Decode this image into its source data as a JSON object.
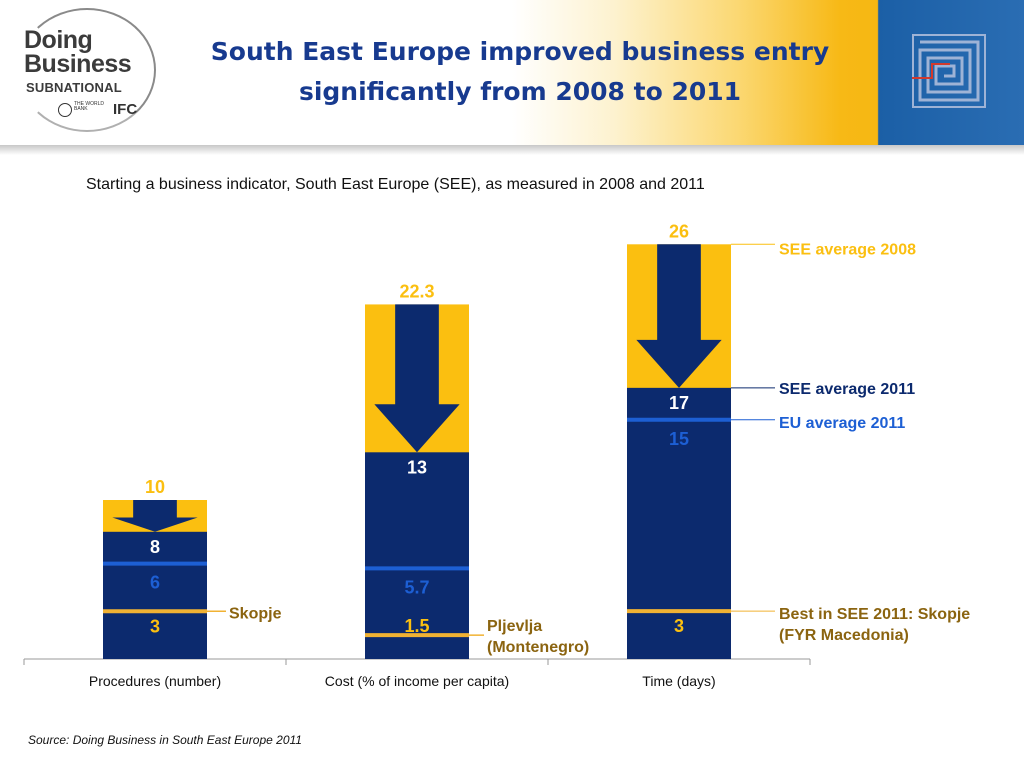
{
  "header": {
    "title_line1": "South East Europe improved business entry",
    "title_line2": "significantly from 2008 to 2011",
    "logo": {
      "line1": "Doing",
      "line2": "Business",
      "line3": "SUBNATIONAL",
      "wb_text": "THE WORLD BANK",
      "ifc_text": "IFC"
    }
  },
  "subtitle": "Starting a business indicator, South East Europe (SEE), as measured in 2008 and 2011",
  "source": "Source: Doing Business in South East Europe 2011",
  "colors": {
    "gold": "#fbbf10",
    "navy": "#0c2a6e",
    "blue": "#1d5fd4",
    "orange_line": "#f1b233",
    "brown": "#8b6410",
    "title": "#173a8f"
  },
  "chart_data": {
    "type": "bar",
    "categories": [
      "Procedures (number)",
      "Cost (% of income per capita)",
      "Time (days)"
    ],
    "series": [
      {
        "name": "SEE average 2008",
        "values": [
          10,
          22.3,
          26
        ]
      },
      {
        "name": "SEE average 2011",
        "values": [
          8,
          13,
          17
        ]
      },
      {
        "name": "EU average 2011",
        "values": [
          6,
          5.7,
          15
        ]
      },
      {
        "name": "Best in SEE 2011",
        "values": [
          3,
          1.5,
          3
        ]
      }
    ],
    "value_labels": [
      {
        "v2008": "10",
        "v2011": "8",
        "eu": "6",
        "best": "3"
      },
      {
        "v2008": "22.3",
        "v2011": "13",
        "eu": "5.7",
        "best": "1.5"
      },
      {
        "v2008": "26",
        "v2011": "17",
        "eu": "15",
        "best": "3"
      }
    ],
    "best_labels": [
      "Skopje",
      "Pljevlja\n(Montenegro)",
      ""
    ],
    "legend": {
      "see2008": "SEE average 2008",
      "see2011": "SEE average 2011",
      "eu2011": "EU average 2011",
      "best": "Best in SEE 2011: Skopje\n(FYR Macedonia)"
    },
    "legend_position": "right",
    "grid": false
  }
}
